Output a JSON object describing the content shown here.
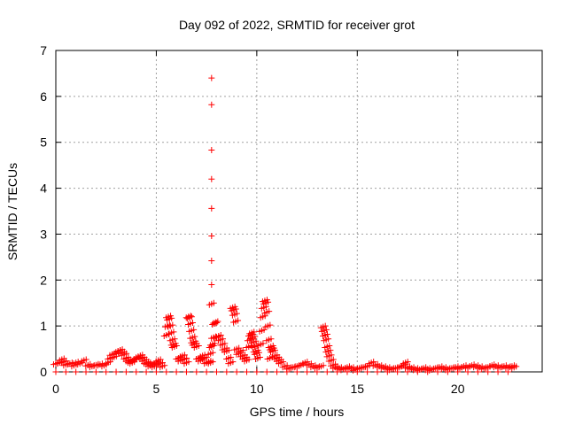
{
  "chart_data": {
    "type": "scatter",
    "title": "Day 092 of 2022, SRMTID for receiver grot",
    "xlabel": "GPS time / hours",
    "ylabel": "SRMTID / TECUs",
    "xlim": [
      0,
      24.2
    ],
    "ylim": [
      0,
      7
    ],
    "xticks": [
      0,
      5,
      10,
      15,
      20
    ],
    "yticks": [
      0,
      1,
      2,
      3,
      4,
      5,
      6,
      7
    ],
    "grid": true,
    "marker": "plus",
    "marker_color": "#ff0000",
    "series": [
      {
        "name": "SRMTID",
        "points": [
          [
            0.0,
            0.18
          ],
          [
            0.2,
            0.2
          ],
          [
            0.3,
            0.27
          ],
          [
            0.4,
            0.22
          ],
          [
            0.5,
            0.16
          ],
          [
            0.7,
            0.18
          ],
          [
            0.9,
            0.14
          ],
          [
            1.0,
            0.2
          ],
          [
            1.2,
            0.18
          ],
          [
            1.4,
            0.25
          ],
          [
            1.6,
            0.15
          ],
          [
            1.8,
            0.12
          ],
          [
            2.0,
            0.15
          ],
          [
            2.2,
            0.16
          ],
          [
            2.4,
            0.14
          ],
          [
            2.6,
            0.2
          ],
          [
            2.7,
            0.3
          ],
          [
            2.8,
            0.38
          ],
          [
            2.9,
            0.32
          ],
          [
            3.0,
            0.4
          ],
          [
            3.1,
            0.45
          ],
          [
            3.2,
            0.47
          ],
          [
            3.3,
            0.42
          ],
          [
            3.4,
            0.38
          ],
          [
            3.5,
            0.3
          ],
          [
            3.6,
            0.25
          ],
          [
            3.7,
            0.22
          ],
          [
            3.8,
            0.2
          ],
          [
            3.9,
            0.25
          ],
          [
            4.0,
            0.3
          ],
          [
            4.1,
            0.33
          ],
          [
            4.2,
            0.35
          ],
          [
            4.3,
            0.3
          ],
          [
            4.4,
            0.25
          ],
          [
            4.5,
            0.2
          ],
          [
            4.6,
            0.18
          ],
          [
            4.7,
            0.14
          ],
          [
            4.8,
            0.16
          ],
          [
            4.9,
            0.12
          ],
          [
            5.0,
            0.2
          ],
          [
            5.1,
            0.25
          ],
          [
            5.2,
            0.18
          ],
          [
            5.3,
            0.12
          ],
          [
            5.5,
            0.8
          ],
          [
            5.55,
            1.0
          ],
          [
            5.6,
            1.2
          ],
          [
            5.65,
            1.15
          ],
          [
            5.7,
            1.0
          ],
          [
            5.75,
            0.85
          ],
          [
            5.8,
            0.7
          ],
          [
            5.85,
            0.6
          ],
          [
            5.9,
            0.55
          ],
          [
            6.1,
            0.3
          ],
          [
            6.2,
            0.25
          ],
          [
            6.3,
            0.35
          ],
          [
            6.4,
            0.28
          ],
          [
            6.5,
            0.2
          ],
          [
            6.6,
            1.2
          ],
          [
            6.65,
            1.18
          ],
          [
            6.7,
            1.05
          ],
          [
            6.75,
            0.9
          ],
          [
            6.8,
            0.75
          ],
          [
            6.85,
            0.65
          ],
          [
            6.9,
            0.6
          ],
          [
            7.0,
            0.55
          ],
          [
            7.1,
            0.3
          ],
          [
            7.2,
            0.25
          ],
          [
            7.3,
            0.35
          ],
          [
            7.4,
            0.3
          ],
          [
            7.5,
            0.2
          ],
          [
            7.6,
            0.22
          ],
          [
            7.7,
            0.2
          ],
          [
            7.7,
            0.4
          ],
          [
            7.75,
            0.55
          ],
          [
            7.75,
            6.4
          ],
          [
            7.75,
            5.82
          ],
          [
            7.75,
            4.83
          ],
          [
            7.75,
            4.2
          ],
          [
            7.75,
            3.56
          ],
          [
            7.75,
            2.96
          ],
          [
            7.75,
            2.42
          ],
          [
            7.75,
            1.9
          ],
          [
            7.75,
            1.48
          ],
          [
            7.8,
            0.6
          ],
          [
            7.85,
            0.75
          ],
          [
            7.9,
            1.05
          ],
          [
            7.95,
            1.08
          ],
          [
            8.0,
            0.75
          ],
          [
            8.1,
            0.78
          ],
          [
            8.2,
            0.7
          ],
          [
            8.3,
            0.6
          ],
          [
            8.4,
            0.5
          ],
          [
            8.5,
            0.45
          ],
          [
            8.6,
            0.3
          ],
          [
            8.7,
            0.2
          ],
          [
            8.8,
            1.4
          ],
          [
            8.85,
            1.35
          ],
          [
            8.9,
            1.25
          ],
          [
            8.95,
            1.1
          ],
          [
            9.0,
            0.5
          ],
          [
            9.1,
            0.4
          ],
          [
            9.2,
            0.45
          ],
          [
            9.3,
            0.35
          ],
          [
            9.4,
            0.3
          ],
          [
            9.5,
            0.25
          ],
          [
            9.6,
            0.55
          ],
          [
            9.65,
            0.7
          ],
          [
            9.7,
            0.8
          ],
          [
            9.75,
            0.85
          ],
          [
            9.8,
            0.75
          ],
          [
            9.85,
            0.65
          ],
          [
            9.9,
            0.55
          ],
          [
            9.95,
            0.45
          ],
          [
            10.0,
            0.4
          ],
          [
            10.05,
            0.3
          ],
          [
            10.2,
            0.6
          ],
          [
            10.25,
            0.9
          ],
          [
            10.3,
            1.2
          ],
          [
            10.35,
            1.4
          ],
          [
            10.4,
            1.55
          ],
          [
            10.45,
            1.5
          ],
          [
            10.5,
            1.3
          ],
          [
            10.55,
            1.0
          ],
          [
            10.6,
            0.7
          ],
          [
            10.65,
            0.3
          ],
          [
            10.7,
            0.55
          ],
          [
            10.75,
            0.5
          ],
          [
            10.8,
            0.45
          ],
          [
            10.9,
            0.35
          ],
          [
            11.0,
            0.3
          ],
          [
            11.1,
            0.25
          ],
          [
            11.2,
            0.2
          ],
          [
            11.4,
            0.12
          ],
          [
            11.6,
            0.08
          ],
          [
            11.8,
            0.1
          ],
          [
            12.0,
            0.12
          ],
          [
            12.2,
            0.15
          ],
          [
            12.4,
            0.2
          ],
          [
            12.6,
            0.16
          ],
          [
            12.8,
            0.12
          ],
          [
            13.0,
            0.1
          ],
          [
            13.2,
            0.12
          ],
          [
            13.3,
            0.98
          ],
          [
            13.35,
            0.9
          ],
          [
            13.4,
            0.8
          ],
          [
            13.45,
            0.7
          ],
          [
            13.5,
            0.55
          ],
          [
            13.55,
            0.45
          ],
          [
            13.6,
            0.35
          ],
          [
            13.7,
            0.25
          ],
          [
            13.8,
            0.15
          ],
          [
            13.9,
            0.1
          ],
          [
            14.1,
            0.08
          ],
          [
            14.3,
            0.06
          ],
          [
            14.5,
            0.1
          ],
          [
            14.7,
            0.08
          ],
          [
            14.9,
            0.05
          ],
          [
            15.1,
            0.08
          ],
          [
            15.3,
            0.1
          ],
          [
            15.5,
            0.12
          ],
          [
            15.7,
            0.2
          ],
          [
            15.9,
            0.15
          ],
          [
            16.1,
            0.12
          ],
          [
            16.3,
            0.1
          ],
          [
            16.5,
            0.08
          ],
          [
            16.7,
            0.06
          ],
          [
            16.9,
            0.08
          ],
          [
            17.1,
            0.1
          ],
          [
            17.3,
            0.15
          ],
          [
            17.4,
            0.2
          ],
          [
            17.5,
            0.1
          ],
          [
            17.7,
            0.08
          ],
          [
            17.9,
            0.06
          ],
          [
            18.1,
            0.05
          ],
          [
            18.3,
            0.08
          ],
          [
            18.5,
            0.06
          ],
          [
            18.7,
            0.05
          ],
          [
            18.9,
            0.08
          ],
          [
            19.1,
            0.1
          ],
          [
            19.3,
            0.08
          ],
          [
            19.5,
            0.06
          ],
          [
            19.7,
            0.08
          ],
          [
            19.9,
            0.1
          ],
          [
            20.1,
            0.08
          ],
          [
            20.3,
            0.12
          ],
          [
            20.5,
            0.1
          ],
          [
            20.7,
            0.14
          ],
          [
            20.9,
            0.12
          ],
          [
            21.1,
            0.1
          ],
          [
            21.3,
            0.08
          ],
          [
            21.5,
            0.1
          ],
          [
            21.7,
            0.14
          ],
          [
            21.9,
            0.12
          ],
          [
            22.1,
            0.1
          ],
          [
            22.3,
            0.12
          ],
          [
            22.5,
            0.1
          ],
          [
            22.7,
            0.12
          ],
          [
            22.8,
            0.1
          ]
        ]
      }
    ],
    "baseline_points": {
      "y": 0,
      "x_start": 0.0,
      "x_end": 22.8,
      "step": 0.5
    }
  }
}
